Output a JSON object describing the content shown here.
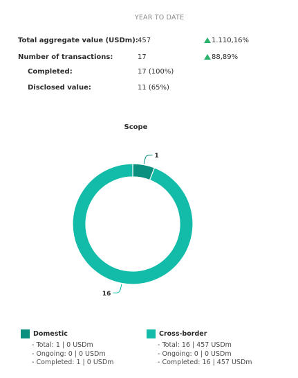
{
  "header": {
    "period": "YEAR TO DATE"
  },
  "stats": [
    {
      "label": "Total aggregate value (USDm):",
      "value": "457",
      "change": "1.110,16%"
    },
    {
      "label": "Number of transactions:",
      "value": "17",
      "change": "88,89%"
    },
    {
      "label": "Completed:",
      "value": "17 (100%)",
      "change": ""
    },
    {
      "label": "Disclosed value:",
      "value": "11 (65%)",
      "change": ""
    }
  ],
  "chart_data": {
    "type": "pie",
    "title": "Scope",
    "style": "donut",
    "slices": [
      {
        "name": "Domestic",
        "value": 1,
        "label": "1",
        "color": "#0b8f7e"
      },
      {
        "name": "Cross-border",
        "value": 16,
        "label": "16",
        "color": "#13bca9"
      }
    ]
  },
  "legend": [
    {
      "name": "Domestic",
      "color": "#0b8f7e",
      "lines": [
        "- Total: 1 | 0 USDm",
        "- Ongoing: 0 | 0 USDm",
        "- Completed: 1 | 0 USDm"
      ]
    },
    {
      "name": "Cross-border",
      "color": "#13bca9",
      "lines": [
        "- Total: 16 | 457 USDm",
        "- Ongoing: 0 | 0 USDm",
        "- Completed: 16 | 457 USDm"
      ]
    }
  ],
  "colors": {
    "up_arrow": "#2ab36b"
  }
}
